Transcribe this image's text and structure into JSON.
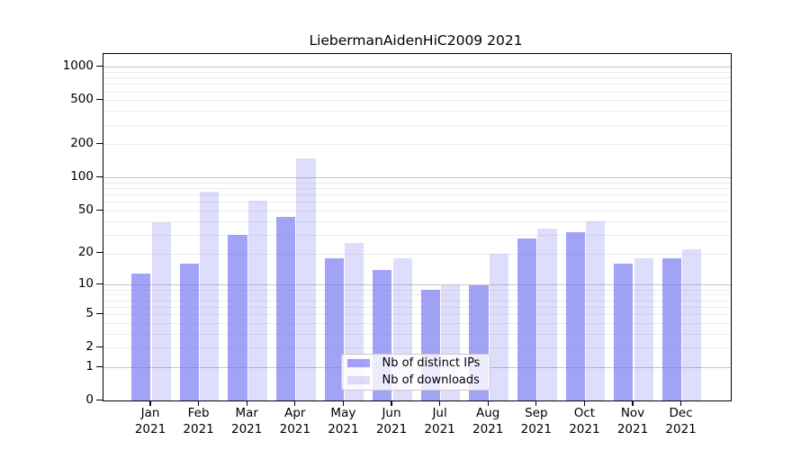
{
  "title": "LiebermanAidenHiC2009 2021",
  "chart_data": {
    "type": "bar",
    "title": "LiebermanAidenHiC2009 2021",
    "y_scale": "log1p",
    "ylim": [
      0,
      1290
    ],
    "grid": true,
    "legend_position": "inside bottom-center",
    "yticks": [
      0,
      1,
      2,
      5,
      10,
      20,
      50,
      100,
      200,
      500,
      1000
    ],
    "categories_months": [
      "Jan",
      "Feb",
      "Mar",
      "Apr",
      "May",
      "Jun",
      "Jul",
      "Aug",
      "Sep",
      "Oct",
      "Nov",
      "Dec"
    ],
    "categories_year": "2021",
    "series": [
      {
        "name": "Nb of distinct IPs",
        "color": "rgba(107,107,240,0.63)",
        "values": [
          13,
          16,
          30,
          44,
          18,
          14,
          9,
          10,
          28,
          32,
          16,
          18
        ]
      },
      {
        "name": "Nb of downloads",
        "color": "rgba(107,107,240,0.22)",
        "values": [
          39,
          75,
          62,
          150,
          25,
          18,
          10,
          20,
          34,
          40,
          18,
          22
        ]
      }
    ],
    "axis_color": "#000000",
    "major_grid_color": "#c6c6c6",
    "minor_grid_color": "#ececec"
  }
}
